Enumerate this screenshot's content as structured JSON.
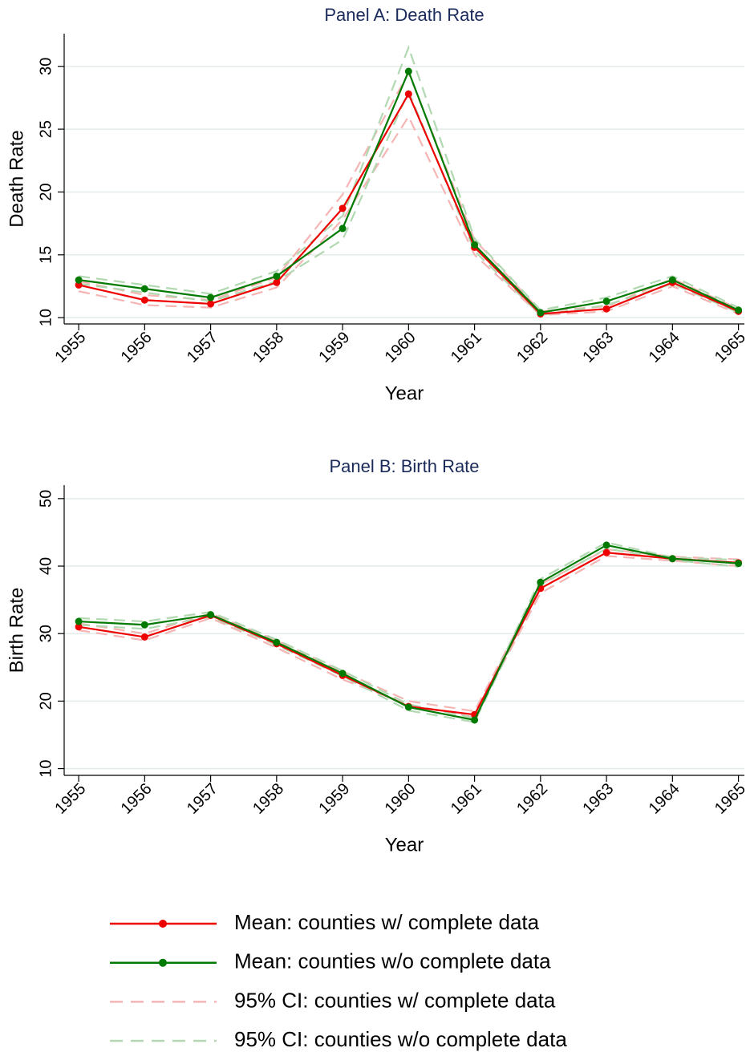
{
  "chart_data": [
    {
      "type": "line",
      "title": "Panel A: Death Rate",
      "x_label": "Year",
      "y_label": "Death Rate",
      "x": [
        1955,
        1956,
        1957,
        1958,
        1959,
        1960,
        1961,
        1962,
        1963,
        1964,
        1965
      ],
      "xlim": [
        1954.78,
        1965.09
      ],
      "xticks": [
        1955,
        1956,
        1957,
        1958,
        1959,
        1960,
        1961,
        1962,
        1963,
        1964,
        1965
      ],
      "ylim": [
        9.5,
        32.6
      ],
      "yticks": [
        10,
        15,
        20,
        25,
        30
      ],
      "grid": true,
      "series": [
        {
          "name": "Mean: counties w/ complete data",
          "color": "#ee0000",
          "values": [
            12.6,
            11.4,
            11.1,
            12.8,
            18.7,
            27.8,
            15.6,
            10.3,
            10.7,
            12.8,
            10.5
          ]
        },
        {
          "name": "Mean: counties w/o complete data",
          "color": "#007a00",
          "values": [
            13.0,
            12.3,
            11.6,
            13.3,
            17.1,
            29.6,
            15.8,
            10.4,
            11.3,
            13.0,
            10.6
          ]
        },
        {
          "name": "95% CI: counties w/ complete data",
          "color": "#f5b5b5",
          "dashed": true,
          "lower": [
            12.1,
            11.0,
            10.8,
            12.4,
            17.8,
            26.0,
            15.0,
            10.2,
            10.5,
            12.5,
            10.3
          ],
          "upper": [
            12.9,
            11.8,
            11.4,
            13.2,
            19.8,
            29.5,
            16.2,
            10.5,
            10.9,
            13.1,
            10.7
          ]
        },
        {
          "name": "95% CI: counties w/o complete data",
          "color": "#b2d8b2",
          "dashed": true,
          "lower": [
            12.7,
            12.0,
            11.3,
            12.9,
            16.2,
            28.0,
            15.3,
            10.2,
            11.0,
            12.7,
            10.4
          ],
          "upper": [
            13.3,
            12.6,
            11.9,
            13.7,
            18.1,
            31.5,
            16.3,
            10.6,
            11.6,
            13.3,
            10.8
          ]
        }
      ]
    },
    {
      "type": "line",
      "title": "Panel B: Birth Rate",
      "x_label": "Year",
      "y_label": "Birth Rate",
      "x": [
        1955,
        1956,
        1957,
        1958,
        1959,
        1960,
        1961,
        1962,
        1963,
        1964,
        1965
      ],
      "xlim": [
        1954.78,
        1965.09
      ],
      "xticks": [
        1955,
        1956,
        1957,
        1958,
        1959,
        1960,
        1961,
        1962,
        1963,
        1964,
        1965
      ],
      "ylim": [
        9,
        52
      ],
      "yticks": [
        10,
        20,
        30,
        40,
        50
      ],
      "grid": true,
      "series": [
        {
          "color": "#ee0000",
          "values": [
            31.0,
            29.5,
            32.7,
            28.5,
            23.8,
            19.2,
            18.0,
            36.7,
            42.0,
            41.1,
            40.5
          ]
        },
        {
          "color": "#007a00",
          "values": [
            31.8,
            31.3,
            32.8,
            28.7,
            24.1,
            19.1,
            17.2,
            37.6,
            43.1,
            41.1,
            40.4
          ]
        },
        {
          "color": "#f5b5b5",
          "dashed": true,
          "lower": [
            30.5,
            29.0,
            32.3,
            27.9,
            23.2,
            19.5,
            17.6,
            36.0,
            41.5,
            40.8,
            40.0
          ],
          "upper": [
            31.5,
            30.0,
            33.0,
            29.0,
            24.4,
            20.0,
            18.5,
            37.3,
            42.5,
            41.4,
            41.0
          ]
        },
        {
          "color": "#b2d8b2",
          "dashed": true,
          "lower": [
            31.3,
            30.7,
            32.5,
            28.3,
            23.7,
            18.6,
            16.9,
            37.2,
            42.6,
            40.9,
            39.9
          ],
          "upper": [
            32.3,
            31.8,
            33.2,
            29.1,
            24.5,
            19.5,
            17.5,
            38.1,
            43.5,
            41.3,
            40.9
          ]
        }
      ]
    }
  ]
}
